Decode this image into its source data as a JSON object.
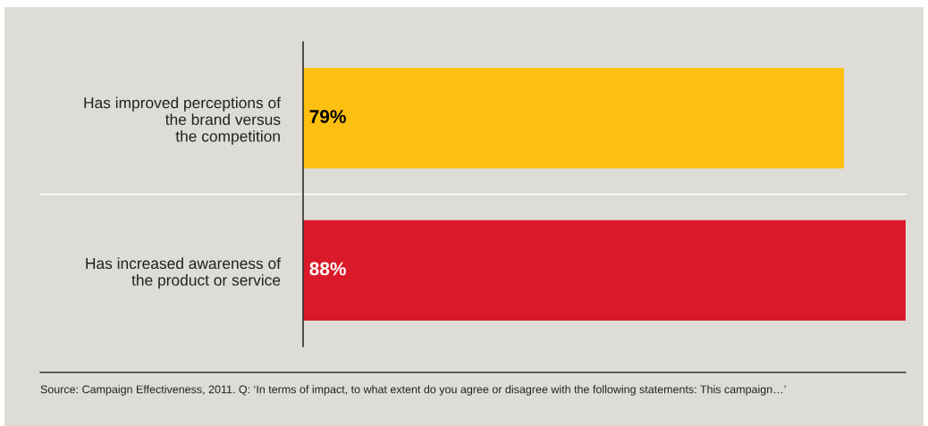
{
  "chart_data": {
    "type": "bar",
    "orientation": "horizontal",
    "categories": [
      "Has improved perceptions of\nthe brand versus\nthe competition",
      "Has increased awareness of\nthe product or service"
    ],
    "values": [
      79,
      88
    ],
    "colors": [
      "#fdc010",
      "#da1a2a"
    ],
    "data_labels": true,
    "value_labels": [
      "79%",
      "88%"
    ],
    "tick_labels": "y",
    "annotations": [
      "Source: Campaign Effectiveness, 2011. Q: ‘In terms of impact, to what extent do you agree or disagree with the following statements: This campaign…’"
    ]
  }
}
